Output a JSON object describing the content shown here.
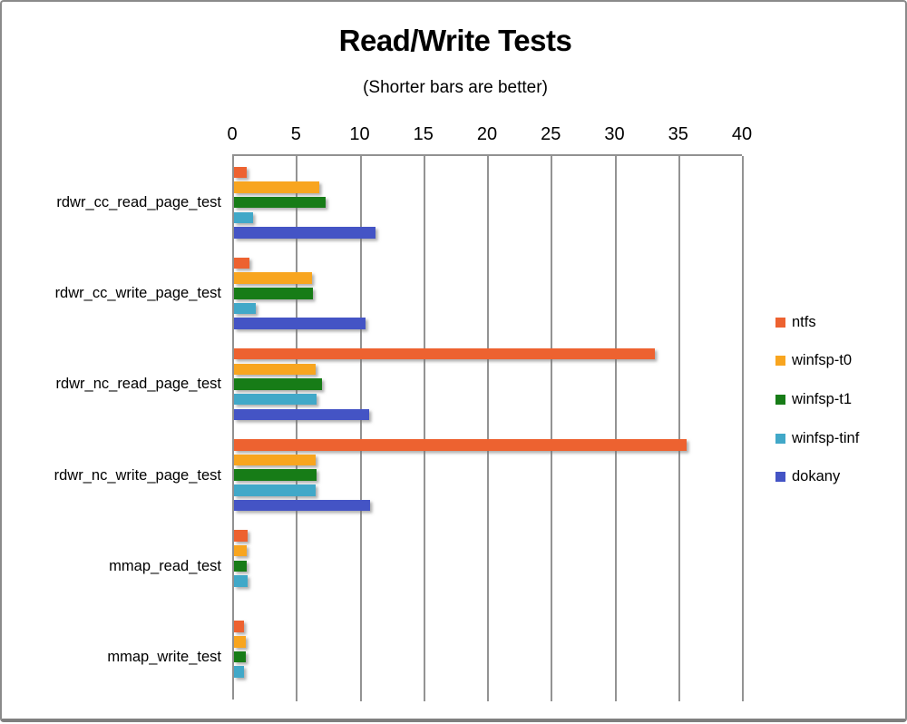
{
  "chart_data": {
    "type": "bar",
    "orientation": "horizontal",
    "title": "Read/Write Tests",
    "subtitle": "(Shorter bars are better)",
    "categories": [
      "rdwr_cc_read_page_test",
      "rdwr_cc_write_page_test",
      "rdwr_nc_read_page_test",
      "rdwr_nc_write_page_test",
      "mmap_read_test",
      "mmap_write_test"
    ],
    "series": [
      {
        "name": "ntfs",
        "color": "#ED6230",
        "values": [
          1.0,
          1.2,
          33.0,
          35.5,
          1.1,
          0.8
        ]
      },
      {
        "name": "winfsp-t0",
        "color": "#F8A51F",
        "values": [
          6.7,
          6.1,
          6.4,
          6.4,
          1.0,
          0.9
        ]
      },
      {
        "name": "winfsp-t1",
        "color": "#177C17",
        "values": [
          7.2,
          6.2,
          6.9,
          6.5,
          1.0,
          0.9
        ]
      },
      {
        "name": "winfsp-tinf",
        "color": "#41A8C8",
        "values": [
          1.5,
          1.7,
          6.5,
          6.4,
          1.1,
          0.8
        ]
      },
      {
        "name": "dokany",
        "color": "#4454C5",
        "values": [
          11.1,
          10.3,
          10.6,
          10.7,
          0,
          0
        ]
      }
    ],
    "x_axis": {
      "min": 0,
      "max": 40,
      "ticks": [
        0,
        5,
        10,
        15,
        20,
        25,
        30,
        35,
        40
      ],
      "position": "top"
    },
    "grid": true,
    "legend_position": "right",
    "note": "bars with value 0 are not drawn (dokany has no mmap bars)"
  },
  "colors": {
    "axis_gray": "#919191",
    "frame_gray": "#8a8a8a",
    "background": "#ffffff"
  }
}
